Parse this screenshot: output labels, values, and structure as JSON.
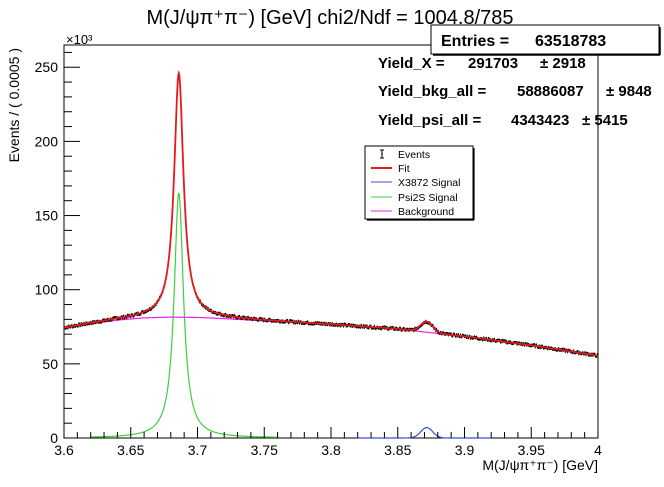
{
  "chart_data": {
    "type": "line",
    "title": "M(J/ψπ⁺π⁻) [GeV] chi2/Ndf = 1004.8/785",
    "xlabel": "M(J/ψπ⁺π⁻) [GeV]",
    "ylabel": "Events / ( 0.0005 )",
    "y_multiplier": "×10³",
    "xlim": [
      3.6,
      4.0
    ],
    "ylim": [
      0,
      265
    ],
    "x_ticks": [
      3.6,
      3.65,
      3.7,
      3.75,
      3.8,
      3.85,
      3.9,
      3.95,
      4.0
    ],
    "x_tick_labels": [
      "3.6",
      "3.65",
      "3.7",
      "3.75",
      "3.8",
      "3.85",
      "3.9",
      "3.95",
      "4"
    ],
    "y_ticks": [
      0,
      50,
      100,
      150,
      200,
      250
    ],
    "y_tick_labels": [
      "0",
      "50",
      "100",
      "150",
      "200",
      "250"
    ],
    "stats": {
      "entries_label": "Entries =",
      "entries_value": "63518783",
      "rows": [
        {
          "label": "Yield_X =",
          "value": "291703",
          "error": "± 2918"
        },
        {
          "label": "Yield_bkg_all =",
          "value": "58886087",
          "error": "± 9848"
        },
        {
          "label": "Yield_psi_all =",
          "value": "4343423",
          "error": "± 5415"
        }
      ]
    },
    "legend": {
      "placement": "upper-right",
      "entries": [
        {
          "label": "Events",
          "color": "#000000"
        },
        {
          "label": "Fit",
          "color": "#e31a1c"
        },
        {
          "label": "X3872 Signal",
          "color": "#3b4fd6"
        },
        {
          "label": "Psi2S Signal",
          "color": "#3fcf3f"
        },
        {
          "label": "Background",
          "color": "#e623e6"
        }
      ]
    },
    "background_points": {
      "x": [
        3.6,
        3.62,
        3.64,
        3.66,
        3.68,
        3.7,
        3.72,
        3.75,
        3.8,
        3.85,
        3.9,
        3.95,
        4.0
      ],
      "y": [
        74,
        77,
        79.5,
        81,
        81.5,
        81.3,
        80.5,
        79,
        76.5,
        73.5,
        68.5,
        62.5,
        55.5
      ]
    },
    "psi2s_signal": {
      "peak_x": 3.686,
      "peak_y": 165,
      "width": 0.0042
    },
    "x3872_signal": {
      "peak_x": 3.8717,
      "peak_y": 7,
      "width": 0.0045
    },
    "fit_peak_total": 246
  }
}
